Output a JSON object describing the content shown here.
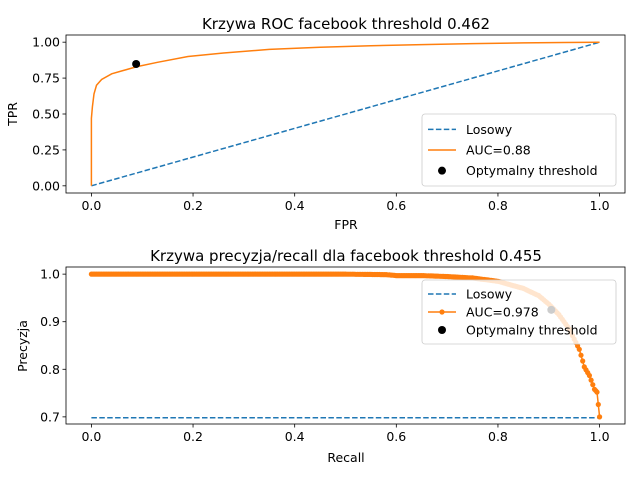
{
  "colors": {
    "random": "#1f77b4",
    "curve": "#ff7f0e",
    "optimal": "#000000"
  },
  "chart_data": [
    {
      "type": "line",
      "title": "Krzywa ROC facebook threshold  0.462",
      "xlabel": "FPR",
      "ylabel": "TPR",
      "xlim": [
        -0.05,
        1.05
      ],
      "ylim": [
        -0.05,
        1.05
      ],
      "xticks": [
        0.0,
        0.2,
        0.4,
        0.6,
        0.8,
        1.0
      ],
      "xtick_labels": [
        "0.0",
        "0.2",
        "0.4",
        "0.6",
        "0.8",
        "1.0"
      ],
      "yticks": [
        0.0,
        0.25,
        0.5,
        0.75,
        1.0
      ],
      "ytick_labels": [
        "0.00",
        "0.25",
        "0.50",
        "0.75",
        "1.00"
      ],
      "legend_position": "lower-right",
      "series": [
        {
          "name": "Losowy",
          "style": "dashed",
          "color": "#1f77b4",
          "x": [
            0,
            1
          ],
          "y": [
            0,
            1
          ]
        },
        {
          "name": "AUC=0.88",
          "style": "solid",
          "color": "#ff7f0e",
          "x": [
            0,
            0,
            0.002,
            0.005,
            0.01,
            0.02,
            0.04,
            0.06,
            0.09,
            0.13,
            0.19,
            0.26,
            0.35,
            0.45,
            0.55,
            0.65,
            0.75,
            0.85,
            0.93,
            1.0
          ],
          "y": [
            0,
            0.47,
            0.55,
            0.64,
            0.7,
            0.74,
            0.78,
            0.8,
            0.83,
            0.86,
            0.9,
            0.925,
            0.95,
            0.965,
            0.975,
            0.983,
            0.99,
            0.995,
            0.998,
            1.0
          ]
        }
      ],
      "optimal": {
        "name": "Optymalny threshold",
        "x": 0.088,
        "y": 0.848
      }
    },
    {
      "type": "line",
      "title": "Krzywa precyzja/recall dla facebook threshold  0.455",
      "xlabel": "Recall",
      "ylabel": "Precyzja",
      "xlim": [
        -0.05,
        1.05
      ],
      "ylim": [
        0.685,
        1.015
      ],
      "xticks": [
        0.0,
        0.2,
        0.4,
        0.6,
        0.8,
        1.0
      ],
      "xtick_labels": [
        "0.0",
        "0.2",
        "0.4",
        "0.6",
        "0.8",
        "1.0"
      ],
      "yticks": [
        0.7,
        0.8,
        0.9,
        1.0
      ],
      "ytick_labels": [
        "0.7",
        "0.8",
        "0.9",
        "1.0"
      ],
      "legend_position": "upper-right",
      "series": [
        {
          "name": "Losowy",
          "style": "dashed",
          "color": "#1f77b4",
          "x": [
            0,
            1
          ],
          "y": [
            0.698,
            0.698
          ]
        },
        {
          "name": "AUC=0.978",
          "style": "solid-markers",
          "color": "#ff7f0e",
          "x": [
            0,
            0.1,
            0.2,
            0.3,
            0.4,
            0.5,
            0.58,
            0.6,
            0.65,
            0.7,
            0.75,
            0.8,
            0.85,
            0.88,
            0.9,
            0.92,
            0.94,
            0.96,
            0.97,
            0.98,
            0.99,
            0.995,
            1.0
          ],
          "y": [
            1.0,
            1.0,
            1.0,
            1.0,
            1.0,
            1.0,
            0.999,
            0.997,
            0.997,
            0.995,
            0.992,
            0.985,
            0.97,
            0.955,
            0.937,
            0.915,
            0.885,
            0.842,
            0.805,
            0.787,
            0.758,
            0.752,
            0.7
          ]
        }
      ],
      "optimal": {
        "name": "Optymalny threshold",
        "x": 0.905,
        "y": 0.925
      }
    }
  ]
}
